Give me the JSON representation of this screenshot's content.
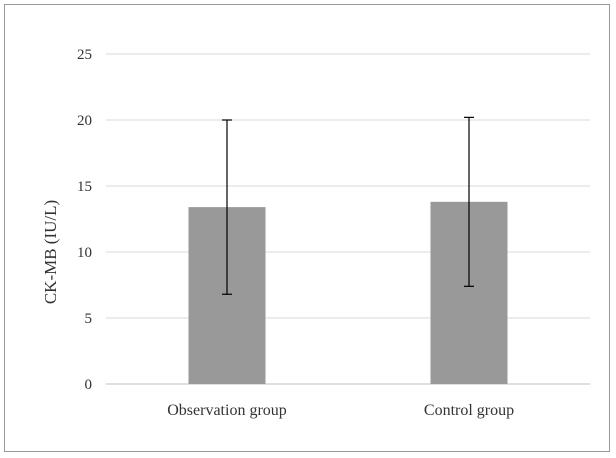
{
  "chart_data": {
    "type": "bar",
    "title": "",
    "xlabel": "",
    "ylabel": "CK-MB (IU/L)",
    "categories": [
      "Observation group",
      "Control group"
    ],
    "values": [
      13.4,
      13.8
    ],
    "error_low": [
      6.8,
      7.4
    ],
    "error_high": [
      20.0,
      20.2
    ],
    "ylim": [
      0,
      25
    ],
    "yticks": [
      "0",
      "5",
      "10",
      "15",
      "20",
      "25"
    ],
    "grid": true,
    "legend": "none",
    "bar_color": "#999999",
    "grid_color": "#d9d9d9",
    "error_color": "#000000"
  }
}
